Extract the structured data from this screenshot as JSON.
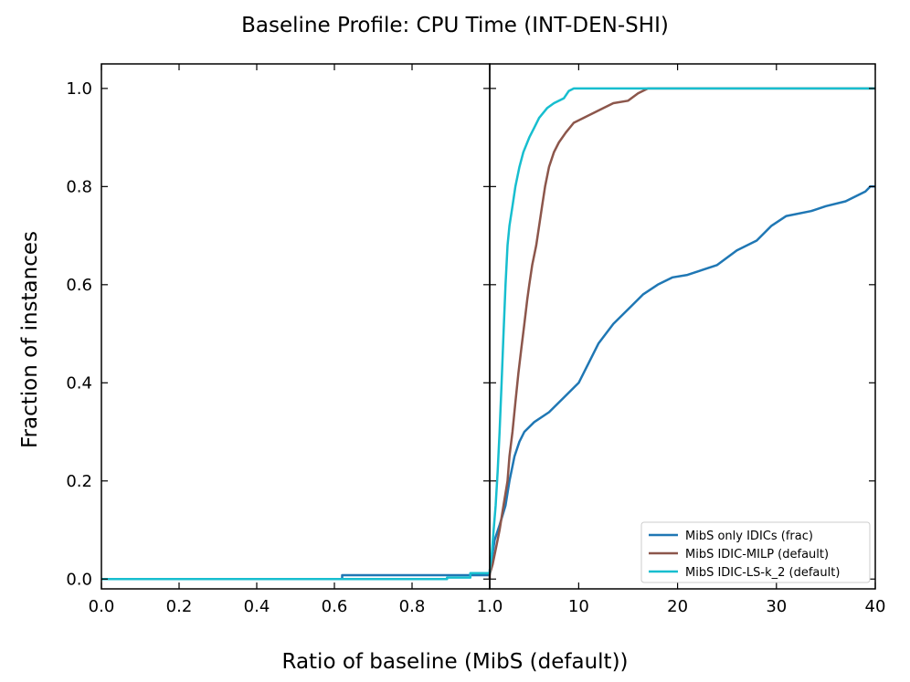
{
  "chart_data": {
    "type": "line",
    "title": "Baseline Profile: CPU Time (INT-DEN-SHI)",
    "xlabel": "Ratio of baseline (MibS (default))",
    "ylabel": "Fraction of instances",
    "x_axis_segments": [
      {
        "scale": "linear",
        "range": [
          0.0,
          1.0
        ],
        "ticks": [
          "0.0",
          "0.2",
          "0.4",
          "0.6",
          "0.8",
          "1.0"
        ],
        "tick_values": [
          0.0,
          0.2,
          0.4,
          0.6,
          0.8,
          1.0
        ]
      },
      {
        "scale": "linear",
        "range": [
          1.0,
          40
        ],
        "ticks": [
          "10",
          "20",
          "30",
          "40"
        ],
        "tick_values": [
          10,
          20,
          30,
          40
        ]
      }
    ],
    "ylim": [
      -0.02,
      1.05
    ],
    "yticks": [
      "0.0",
      "0.2",
      "0.4",
      "0.6",
      "0.8",
      "1.0"
    ],
    "ytick_values": [
      0.0,
      0.2,
      0.4,
      0.6,
      0.8,
      1.0
    ],
    "legend_position": "lower-right",
    "series": [
      {
        "name": "MibS only IDICs (frac)",
        "color": "#1f77b4",
        "points": [
          [
            0.0,
            0.0
          ],
          [
            0.62,
            0.0
          ],
          [
            0.62,
            0.008
          ],
          [
            1.0,
            0.008
          ],
          [
            1.0,
            0.01
          ],
          [
            1.2,
            0.04
          ],
          [
            1.5,
            0.08
          ],
          [
            2.0,
            0.11
          ],
          [
            2.6,
            0.15
          ],
          [
            3.0,
            0.2
          ],
          [
            3.5,
            0.25
          ],
          [
            4.0,
            0.28
          ],
          [
            4.5,
            0.3
          ],
          [
            5.5,
            0.32
          ],
          [
            7.0,
            0.34
          ],
          [
            8.5,
            0.37
          ],
          [
            10.0,
            0.4
          ],
          [
            11.0,
            0.44
          ],
          [
            12.0,
            0.48
          ],
          [
            13.5,
            0.52
          ],
          [
            15.0,
            0.55
          ],
          [
            16.5,
            0.58
          ],
          [
            18.0,
            0.6
          ],
          [
            19.5,
            0.615
          ],
          [
            21.0,
            0.62
          ],
          [
            22.5,
            0.63
          ],
          [
            24.0,
            0.64
          ],
          [
            26.0,
            0.67
          ],
          [
            28.0,
            0.69
          ],
          [
            29.5,
            0.72
          ],
          [
            31.0,
            0.74
          ],
          [
            33.5,
            0.75
          ],
          [
            35.0,
            0.76
          ],
          [
            37.0,
            0.77
          ],
          [
            39.0,
            0.79
          ],
          [
            39.5,
            0.8
          ],
          [
            40.0,
            0.8
          ]
        ]
      },
      {
        "name": "MibS IDIC-MILP (default)",
        "color": "#8c564b",
        "points": [
          [
            1.0,
            0.0
          ],
          [
            1.0,
            0.01
          ],
          [
            1.3,
            0.03
          ],
          [
            1.6,
            0.06
          ],
          [
            2.0,
            0.1
          ],
          [
            2.4,
            0.15
          ],
          [
            2.8,
            0.2
          ],
          [
            3.0,
            0.25
          ],
          [
            3.3,
            0.3
          ],
          [
            3.6,
            0.36
          ],
          [
            3.9,
            0.42
          ],
          [
            4.2,
            0.47
          ],
          [
            4.5,
            0.52
          ],
          [
            4.8,
            0.57
          ],
          [
            5.0,
            0.6
          ],
          [
            5.3,
            0.64
          ],
          [
            5.7,
            0.68
          ],
          [
            6.0,
            0.72
          ],
          [
            6.3,
            0.76
          ],
          [
            6.6,
            0.8
          ],
          [
            7.0,
            0.84
          ],
          [
            7.5,
            0.87
          ],
          [
            8.0,
            0.89
          ],
          [
            8.7,
            0.91
          ],
          [
            9.5,
            0.93
          ],
          [
            10.5,
            0.94
          ],
          [
            11.5,
            0.95
          ],
          [
            12.5,
            0.96
          ],
          [
            13.5,
            0.97
          ],
          [
            15.0,
            0.975
          ],
          [
            16.0,
            0.99
          ],
          [
            17.0,
            1.0
          ],
          [
            40.0,
            1.0
          ]
        ]
      },
      {
        "name": "MibS IDIC-LS-k_2 (default)",
        "color": "#17becf",
        "points": [
          [
            0.0,
            0.0
          ],
          [
            0.89,
            0.0
          ],
          [
            0.89,
            0.003
          ],
          [
            0.95,
            0.003
          ],
          [
            0.95,
            0.012
          ],
          [
            1.0,
            0.012
          ],
          [
            1.0,
            0.02
          ],
          [
            1.2,
            0.05
          ],
          [
            1.4,
            0.1
          ],
          [
            1.6,
            0.15
          ],
          [
            1.8,
            0.22
          ],
          [
            2.0,
            0.3
          ],
          [
            2.2,
            0.4
          ],
          [
            2.4,
            0.5
          ],
          [
            2.6,
            0.6
          ],
          [
            2.8,
            0.68
          ],
          [
            3.0,
            0.72
          ],
          [
            3.3,
            0.76
          ],
          [
            3.6,
            0.8
          ],
          [
            4.0,
            0.84
          ],
          [
            4.4,
            0.87
          ],
          [
            5.0,
            0.9
          ],
          [
            5.5,
            0.92
          ],
          [
            6.0,
            0.94
          ],
          [
            6.8,
            0.96
          ],
          [
            7.5,
            0.97
          ],
          [
            8.5,
            0.98
          ],
          [
            9.0,
            0.995
          ],
          [
            9.5,
            1.0
          ],
          [
            40.0,
            1.0
          ]
        ]
      }
    ]
  }
}
